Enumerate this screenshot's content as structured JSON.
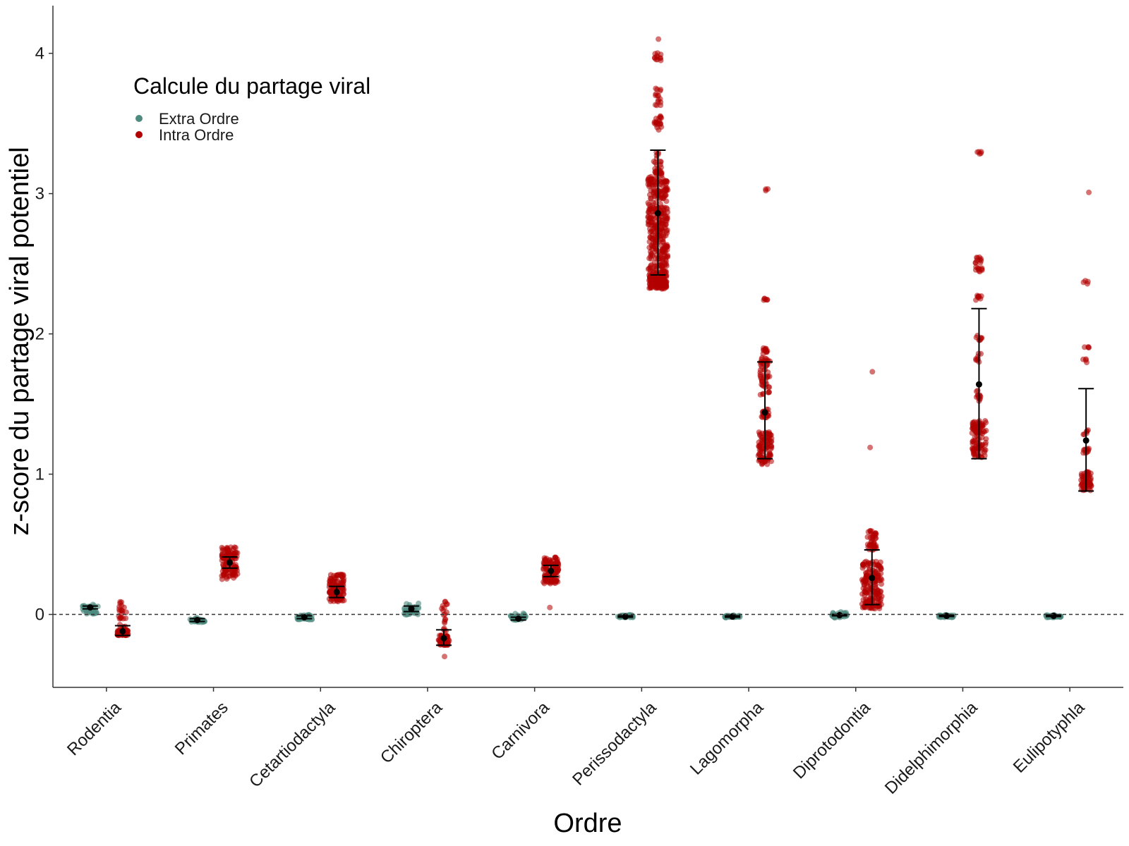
{
  "chart_data": {
    "type": "scatter",
    "title": "",
    "xlabel": "Ordre",
    "ylabel": "z-score du partage viral potentiel",
    "ylim": [
      -0.52,
      4.34
    ],
    "yticks": [
      0,
      1,
      2,
      3,
      4
    ],
    "reference_line": {
      "y": 0,
      "style": "dashed"
    },
    "grid": false,
    "legend": {
      "title": "Calcule du partage viral",
      "position": "top-left",
      "entries": [
        {
          "name": "Extra Ordre",
          "color": "#4e8a7e"
        },
        {
          "name": "Intra Ordre",
          "color": "#b30000"
        }
      ]
    },
    "categories": [
      "Rodentia",
      "Primates",
      "Cetartiodactyla",
      "Chiroptera",
      "Carnivora",
      "Perissodactyla",
      "Lagomorpha",
      "Diprotodontia",
      "Didelphimorphia",
      "Eulipotyphla"
    ],
    "series": [
      {
        "name": "Extra Ordre",
        "color": "#4e8a7e",
        "mean": [
          0.05,
          -0.04,
          -0.02,
          0.04,
          -0.03,
          -0.015,
          -0.015,
          -0.005,
          -0.01,
          -0.01
        ],
        "err_low": [
          0.04,
          -0.05,
          -0.03,
          0.02,
          -0.04,
          -0.02,
          -0.02,
          -0.01,
          -0.015,
          -0.015
        ],
        "err_high": [
          0.06,
          -0.03,
          -0.01,
          0.06,
          -0.02,
          -0.01,
          -0.01,
          0.0,
          -0.005,
          -0.005
        ],
        "min": [
          -0.03,
          -0.07,
          -0.05,
          -0.04,
          -0.06,
          -0.03,
          -0.03,
          -0.04,
          -0.03,
          -0.03
        ],
        "max": [
          0.08,
          -0.02,
          0.0,
          0.09,
          0.01,
          0.0,
          0.0,
          0.02,
          0.0,
          0.0
        ]
      },
      {
        "name": "Intra Ordre",
        "color": "#b30000",
        "mean": [
          -0.12,
          0.37,
          0.16,
          -0.17,
          0.31,
          2.86,
          1.44,
          0.26,
          1.64,
          1.24
        ],
        "err_low": [
          -0.15,
          0.33,
          0.12,
          -0.22,
          0.27,
          2.42,
          1.11,
          0.07,
          1.11,
          0.88
        ],
        "err_high": [
          -0.08,
          0.41,
          0.2,
          -0.11,
          0.35,
          3.31,
          1.8,
          0.46,
          2.18,
          1.61
        ],
        "min": [
          -0.15,
          0.25,
          0.09,
          -0.3,
          0.04,
          2.32,
          1.07,
          0.04,
          1.12,
          0.88
        ],
        "max": [
          0.09,
          0.48,
          0.29,
          0.13,
          0.41,
          4.12,
          3.05,
          1.73,
          3.32,
          3.01
        ],
        "clusters": [
          [
            [
              -0.15,
              -0.11,
              60
            ],
            [
              -0.11,
              0.09,
              25
            ]
          ],
          [
            [
              0.25,
              0.48,
              120
            ]
          ],
          [
            [
              0.09,
              0.29,
              110
            ]
          ],
          [
            [
              -0.22,
              -0.15,
              60
            ],
            [
              -0.15,
              0.12,
              20
            ],
            [
              -0.3,
              -0.29,
              1
            ]
          ],
          [
            [
              0.22,
              0.41,
              110
            ],
            [
              0.04,
              0.05,
              1
            ]
          ],
          [
            [
              2.32,
              2.42,
              140
            ],
            [
              2.42,
              3.12,
              320
            ],
            [
              3.12,
              3.3,
              30
            ],
            [
              3.45,
              3.58,
              20
            ],
            [
              3.62,
              3.75,
              15
            ],
            [
              3.94,
              4.02,
              12
            ],
            [
              4.1,
              4.12,
              1
            ]
          ],
          [
            [
              1.07,
              1.3,
              90
            ],
            [
              1.4,
              1.47,
              20
            ],
            [
              1.55,
              1.83,
              50
            ],
            [
              1.85,
              1.9,
              12
            ],
            [
              2.24,
              2.26,
              6
            ],
            [
              3.02,
              3.05,
              3
            ]
          ],
          [
            [
              0.04,
              0.38,
              170
            ],
            [
              0.46,
              0.6,
              40
            ],
            [
              1.19,
              1.2,
              1
            ],
            [
              1.72,
              1.73,
              1
            ]
          ],
          [
            [
              1.12,
              1.38,
              100
            ],
            [
              1.52,
              1.6,
              12
            ],
            [
              1.8,
              1.87,
              8
            ],
            [
              1.95,
              2.0,
              8
            ],
            [
              2.24,
              2.28,
              8
            ],
            [
              2.44,
              2.55,
              20
            ],
            [
              3.28,
              3.32,
              5
            ]
          ],
          [
            [
              0.88,
              1.02,
              60
            ],
            [
              1.15,
              1.2,
              10
            ],
            [
              1.28,
              1.32,
              6
            ],
            [
              1.78,
              1.82,
              4
            ],
            [
              1.89,
              1.92,
              4
            ],
            [
              2.35,
              2.38,
              4
            ],
            [
              3.0,
              3.01,
              1
            ]
          ]
        ]
      }
    ]
  }
}
